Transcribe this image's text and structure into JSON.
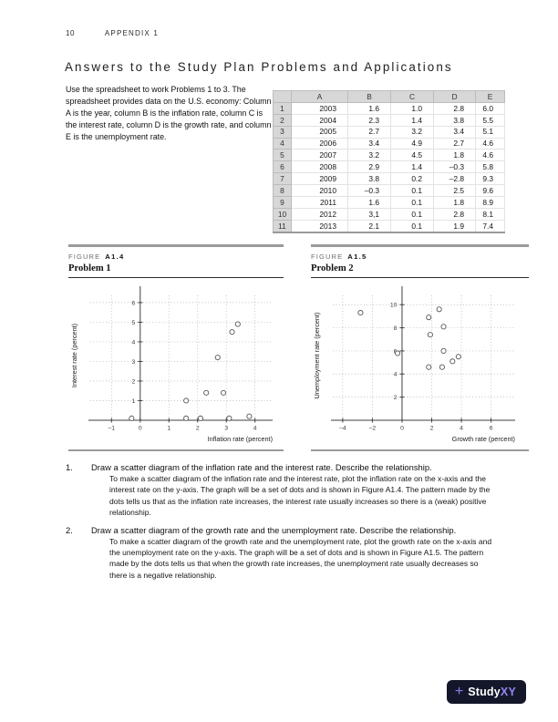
{
  "page": {
    "page_number": "10",
    "header_label": "APPENDIX 1",
    "title": "Answers to the Study Plan Problems and Applications"
  },
  "intro": {
    "text": "Use the spreadsheet to work Problems 1 to 3. The spreadsheet provides data on the U.S. economy: Column A is the year, column B is the inflation rate, column C is the interest rate, column D is the growth rate, and column E is the unemployment rate."
  },
  "spreadsheet": {
    "col_headers": [
      "A",
      "B",
      "C",
      "D",
      "E"
    ],
    "rows": [
      {
        "num": "1",
        "cells": [
          "2003",
          "1.6",
          "1.0",
          "2.8",
          "6.0"
        ]
      },
      {
        "num": "2",
        "cells": [
          "2004",
          "2.3",
          "1.4",
          "3.8",
          "5.5"
        ]
      },
      {
        "num": "3",
        "cells": [
          "2005",
          "2.7",
          "3.2",
          "3.4",
          "5.1"
        ]
      },
      {
        "num": "4",
        "cells": [
          "2006",
          "3.4",
          "4.9",
          "2.7",
          "4.6"
        ]
      },
      {
        "num": "5",
        "cells": [
          "2007",
          "3.2",
          "4.5",
          "1.8",
          "4.6"
        ]
      },
      {
        "num": "6",
        "cells": [
          "2008",
          "2.9",
          "1.4",
          "–0.3",
          "5.8"
        ]
      },
      {
        "num": "7",
        "cells": [
          "2009",
          "3.8",
          "0.2",
          "–2.8",
          "9.3"
        ]
      },
      {
        "num": "8",
        "cells": [
          "2010",
          "–0.3",
          "0.1",
          "2.5",
          "9.6"
        ]
      },
      {
        "num": "9",
        "cells": [
          "2011",
          "1.6",
          "0.1",
          "1.8",
          "8.9"
        ]
      },
      {
        "num": "10",
        "cells": [
          "2012",
          "3,1",
          "0.1",
          "2.8",
          "8.1"
        ]
      },
      {
        "num": "11",
        "cells": [
          "2013",
          "2.1",
          "0.1",
          "1.9",
          "7.4"
        ]
      }
    ]
  },
  "figures": [
    {
      "kicker": "FIGURE",
      "number": "A1.4",
      "subtitle": "Problem 1"
    },
    {
      "kicker": "FIGURE",
      "number": "A1.5",
      "subtitle": "Problem 2"
    }
  ],
  "chart_data": [
    {
      "type": "scatter",
      "title": "Problem 1",
      "xlabel": "Inflation rate (percent)",
      "ylabel": "Interest rate (percent)",
      "xlim": [
        -1.55,
        4.55
      ],
      "ylim": [
        0,
        6.6
      ],
      "xticks": [
        -1,
        0,
        1,
        2,
        3,
        4
      ],
      "yticks": [
        1,
        2,
        3,
        4,
        5,
        6
      ],
      "grid": "dotted",
      "points": [
        [
          1.6,
          1.0
        ],
        [
          2.3,
          1.4
        ],
        [
          2.7,
          3.2
        ],
        [
          3.4,
          4.9
        ],
        [
          3.2,
          4.5
        ],
        [
          2.9,
          1.4
        ],
        [
          3.8,
          0.2
        ],
        [
          -0.3,
          0.1
        ],
        [
          1.6,
          0.1
        ],
        [
          3.1,
          0.1
        ],
        [
          2.1,
          0.1
        ]
      ]
    },
    {
      "type": "scatter",
      "title": "Problem 2",
      "xlabel": "Growth rate (percent)",
      "ylabel": "Unemployment rate (percent)",
      "xlim": [
        -4.3,
        7.5
      ],
      "ylim": [
        0,
        11.2
      ],
      "xticks": [
        -4,
        -2,
        0,
        2,
        4,
        6
      ],
      "yticks": [
        2,
        4,
        6,
        8,
        10
      ],
      "grid": "dotted",
      "points": [
        [
          2.8,
          6.0
        ],
        [
          3.8,
          5.5
        ],
        [
          3.4,
          5.1
        ],
        [
          2.7,
          4.6
        ],
        [
          1.8,
          4.6
        ],
        [
          -0.3,
          5.8
        ],
        [
          -2.8,
          9.3
        ],
        [
          2.5,
          9.6
        ],
        [
          1.8,
          8.9
        ],
        [
          2.8,
          8.1
        ],
        [
          1.9,
          7.4
        ]
      ]
    }
  ],
  "answers": [
    {
      "num": "1.",
      "question": "Draw a scatter diagram of the inflation rate and the interest rate. Describe the relationship.",
      "answer": "To make a scatter diagram of the inflation rate and the interest rate, plot the inflation rate on the x-axis and the interest rate on the y-axis. The graph will be a set of dots and is shown in Figure A1.4. The pattern made by the dots tells us that as the inflation rate increases, the interest rate usually increases so there is a (weak) positive relationship."
    },
    {
      "num": "2.",
      "question": "Draw a scatter diagram of the growth rate and the unemployment rate. Describe the relationship.",
      "answer": "To make a scatter diagram of the growth rate and the unemployment rate, plot the growth rate on the x-axis and the unemployment rate on the y-axis. The graph will be a set of dots and is shown in Figure A1.5. The pattern made by the dots tells us that when the growth rate increases, the unemployment rate usually decreases so there is a negative relationship."
    }
  ],
  "footer": {
    "plus": "+",
    "logo_prefix": "Study",
    "logo_suffix": "XY",
    "badge_bg": "#141729",
    "accent_purple": "#8a7bf0"
  }
}
